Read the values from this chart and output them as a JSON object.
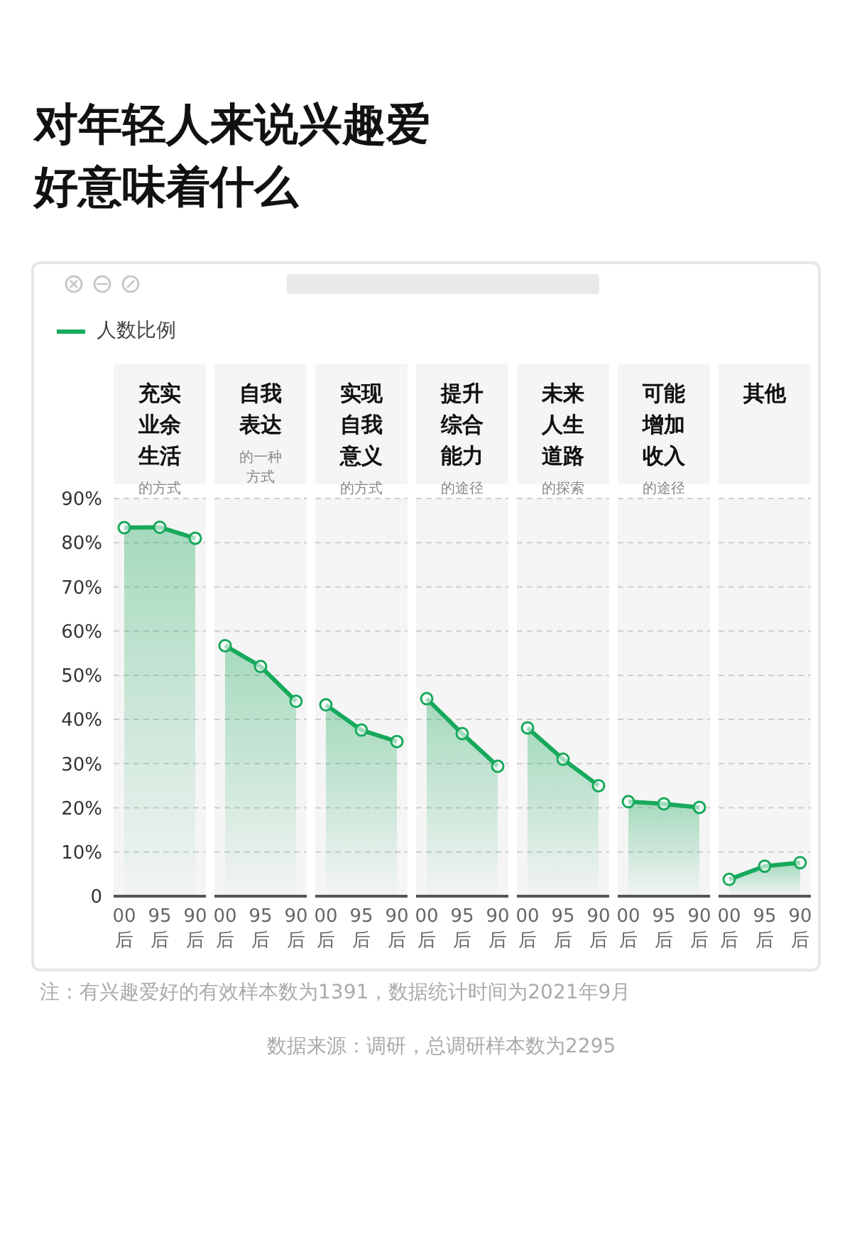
{
  "chart_data": [
    {
      "type": "other",
      "title": "对年轻人来说兴趣爱好意味着什么",
      "annotations": [
        "注：有兴趣爱好的有效样本数为1391，数据统计时间为2021年9月",
        "数据来源：调研，总调研样本数为2295"
      ]
    },
    {
      "type": "area",
      "title": "充实业余生活",
      "subtitle": "的方式",
      "categories": [
        "00后",
        "95后",
        "90后"
      ],
      "series": [
        {
          "name": "人数比例",
          "color": "#17a95c",
          "values": [
            83.4,
            83.5,
            81.0
          ]
        }
      ],
      "ylim": [
        0,
        90
      ],
      "yticks": [
        {
          "value": 0,
          "label": "0"
        },
        {
          "value": 10,
          "label": "10%"
        },
        {
          "value": 20,
          "label": "20%"
        },
        {
          "value": 30,
          "label": "30%"
        },
        {
          "value": 40,
          "label": "40%"
        },
        {
          "value": 50,
          "label": "50%"
        },
        {
          "value": 60,
          "label": "60%"
        },
        {
          "value": 70,
          "label": "70%"
        },
        {
          "value": 80,
          "label": "80%"
        },
        {
          "value": 90,
          "label": "90%"
        }
      ],
      "grid": "y",
      "marker": "circle",
      "legend": "top left"
    },
    {
      "type": "area",
      "title": "自我表达",
      "subtitle": "的一种方式",
      "categories": [
        "00后",
        "95后",
        "90后"
      ],
      "series": [
        {
          "color": "#17a95c",
          "values": [
            56.7,
            52.0,
            44.1
          ]
        }
      ],
      "ylim": [
        0,
        90
      ],
      "yticks": [
        0,
        10,
        20,
        30,
        40,
        50,
        60,
        70,
        80,
        90
      ],
      "grid": "y",
      "marker": "circle",
      "tick_labels": "x"
    },
    {
      "type": "area",
      "title": "实现自我意义",
      "subtitle": "的方式",
      "categories": [
        "00后",
        "95后",
        "90后"
      ],
      "series": [
        {
          "color": "#17a95c",
          "values": [
            43.3,
            37.6,
            35.0
          ]
        }
      ],
      "ylim": [
        0,
        90
      ],
      "yticks": [
        0,
        10,
        20,
        30,
        40,
        50,
        60,
        70,
        80,
        90
      ],
      "grid": "y",
      "marker": "circle",
      "tick_labels": "x"
    },
    {
      "type": "area",
      "title": "提升综合能力",
      "subtitle": "的途径",
      "categories": [
        "00后",
        "95后",
        "90后"
      ],
      "series": [
        {
          "color": "#17a95c",
          "values": [
            44.7,
            36.8,
            29.4
          ]
        }
      ],
      "ylim": [
        0,
        90
      ],
      "yticks": [
        0,
        10,
        20,
        30,
        40,
        50,
        60,
        70,
        80,
        90
      ],
      "grid": "y",
      "marker": "circle",
      "tick_labels": "x"
    },
    {
      "type": "area",
      "title": "未来人生道路",
      "subtitle": "的探索",
      "categories": [
        "00后",
        "95后",
        "90后"
      ],
      "series": [
        {
          "color": "#17a95c",
          "values": [
            38.1,
            31.0,
            25.0
          ]
        }
      ],
      "ylim": [
        0,
        90
      ],
      "yticks": [
        0,
        10,
        20,
        30,
        40,
        50,
        60,
        70,
        80,
        90
      ],
      "grid": "y",
      "marker": "circle",
      "tick_labels": "x"
    },
    {
      "type": "area",
      "title": "可能增加收入",
      "subtitle": "的途径",
      "categories": [
        "00后",
        "95后",
        "90后"
      ],
      "series": [
        {
          "color": "#17a95c",
          "values": [
            21.4,
            20.9,
            20.1
          ]
        }
      ],
      "ylim": [
        0,
        90
      ],
      "yticks": [
        0,
        10,
        20,
        30,
        40,
        50,
        60,
        70,
        80,
        90
      ],
      "grid": "y",
      "marker": "circle",
      "tick_labels": "x"
    },
    {
      "type": "area",
      "title": "其他",
      "categories": [
        "00后",
        "95后",
        "90后"
      ],
      "series": [
        {
          "color": "#17a95c",
          "values": [
            3.8,
            6.8,
            7.6
          ]
        }
      ],
      "ylim": [
        0,
        90
      ],
      "yticks": [
        0,
        10,
        20,
        30,
        40,
        50,
        60,
        70,
        80,
        90
      ],
      "grid": "y",
      "marker": "circle",
      "tick_labels": "x"
    }
  ]
}
